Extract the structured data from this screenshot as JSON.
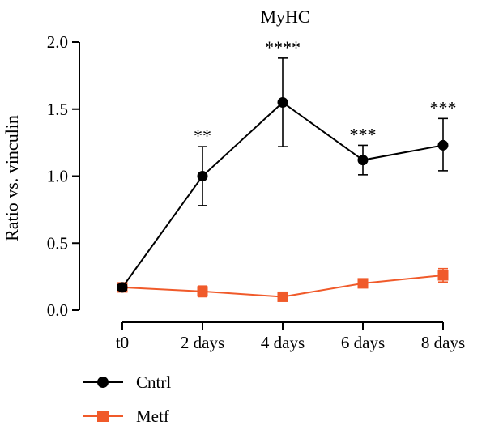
{
  "chart_data": {
    "type": "line",
    "title": "MyHC",
    "xlabel": "",
    "ylabel": "Ratio vs. vinculin",
    "ylim": [
      0,
      2.0
    ],
    "yticks": [
      "0.0",
      "0.5",
      "1.0",
      "1.5",
      "2.0"
    ],
    "categories": [
      "t0",
      "2 days",
      "4 days",
      "6 days",
      "8 days"
    ],
    "series": [
      {
        "name": "Cntrl",
        "color": "#000000",
        "marker": "circle",
        "values": [
          0.17,
          1.0,
          1.55,
          1.12,
          1.23
        ],
        "err_low": [
          0.15,
          0.78,
          1.22,
          1.01,
          1.04
        ],
        "err_high": [
          0.19,
          1.22,
          1.88,
          1.23,
          1.43
        ]
      },
      {
        "name": "Metf",
        "color": "#f05a2a",
        "marker": "square",
        "values": [
          0.17,
          0.14,
          0.1,
          0.2,
          0.26
        ],
        "err_low": [
          0.15,
          0.1,
          0.09,
          0.18,
          0.21
        ],
        "err_high": [
          0.19,
          0.18,
          0.11,
          0.22,
          0.31
        ]
      }
    ],
    "significance": [
      "",
      "**",
      "****",
      "***",
      "***"
    ],
    "legend_position": "bottom-left",
    "grid": false
  }
}
